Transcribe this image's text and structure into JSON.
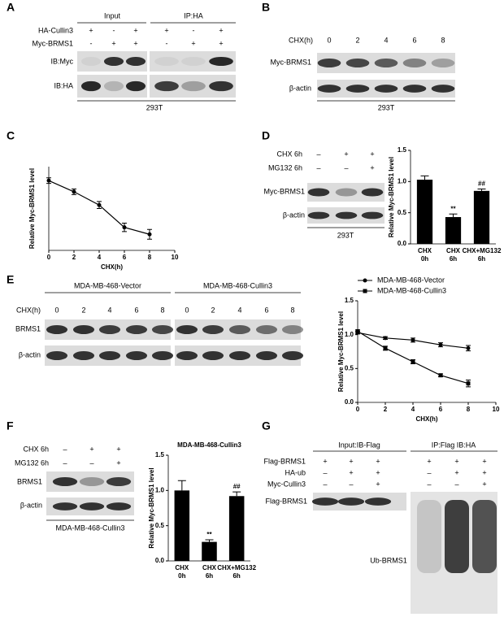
{
  "panels": {
    "A": {
      "label": "A",
      "groups": [
        "Input",
        "IP:HA"
      ],
      "conditions": [
        {
          "name": "HA-Cullin3",
          "signs": [
            "+",
            "-",
            "+",
            "+",
            "-",
            "+"
          ]
        },
        {
          "name": "Myc-BRMS1",
          "signs": [
            "-",
            "+",
            "+",
            "-",
            "+",
            "+"
          ]
        }
      ],
      "blots": [
        "IB:Myc",
        "IB:HA"
      ],
      "cell_line": "293T"
    },
    "B": {
      "label": "B",
      "time_label": "CHX(h)",
      "times": [
        0,
        2,
        4,
        6,
        8
      ],
      "blots": [
        "Myc-BRMS1",
        "β-actin"
      ],
      "cell_line": "293T"
    },
    "D": {
      "label": "D",
      "conditions": [
        {
          "name": "CHX 6h",
          "signs": [
            "–",
            "+",
            "+"
          ]
        },
        {
          "name": "MG132 6h",
          "signs": [
            "–",
            "–",
            "+"
          ]
        }
      ],
      "blots": [
        "Myc-BRMS1",
        "β-actin"
      ],
      "cell_line": "293T"
    },
    "E": {
      "label": "E",
      "time_label": "CHX(h)",
      "groups": [
        {
          "title": "MDA-MB-468-Vector",
          "times": [
            0,
            2,
            4,
            6,
            8
          ]
        },
        {
          "title": "MDA-MB-468-Cullin3",
          "times": [
            0,
            2,
            4,
            6,
            8
          ]
        }
      ],
      "blots": [
        "BRMS1",
        "β-actin"
      ]
    },
    "F": {
      "label": "F",
      "conditions": [
        {
          "name": "CHX 6h",
          "signs": [
            "–",
            "+",
            "+"
          ]
        },
        {
          "name": "MG132 6h",
          "signs": [
            "–",
            "–",
            "+"
          ]
        }
      ],
      "blots": [
        "BRMS1",
        "β-actin"
      ],
      "cell_line": "MDA-MB-468-Cullin3"
    },
    "G": {
      "label": "G",
      "groups": [
        "Input:IB-Flag",
        "IP:Flag IB:HA"
      ],
      "conditions": [
        {
          "name": "Flag-BRMS1",
          "signs": [
            "+",
            "+",
            "+",
            "+",
            "+",
            "+"
          ]
        },
        {
          "name": "HA-ub",
          "signs": [
            "–",
            "+",
            "+",
            "–",
            "+",
            "+"
          ]
        },
        {
          "name": "Myc-Cullin3",
          "signs": [
            "–",
            "–",
            "+",
            "–",
            "–",
            "+"
          ]
        }
      ],
      "blots": [
        "Flag-BRMS1",
        "Ub-BRMS1"
      ]
    }
  },
  "chart_data": [
    {
      "type": "line",
      "label": "C",
      "x": [
        0,
        2,
        4,
        6,
        8
      ],
      "values": [
        1.0,
        0.84,
        0.65,
        0.33,
        0.23
      ],
      "errors": [
        0.04,
        0.04,
        0.05,
        0.06,
        0.07
      ],
      "color": "#000000",
      "marker": "circle",
      "xlim": [
        0,
        10
      ],
      "xticks": [
        0,
        2,
        4,
        6,
        8,
        10
      ],
      "ylim": [
        0,
        1.2
      ],
      "xlabel": "CHX(h)",
      "ylabel": "Relative Myc-BRMS1 level"
    },
    {
      "type": "bar",
      "categories": [
        "CHX 0h",
        "CHX 6h",
        "CHX+MG132 6h"
      ],
      "values": [
        1.03,
        0.43,
        0.85
      ],
      "errors": [
        0.06,
        0.05,
        0.03
      ],
      "annotations": [
        null,
        "**",
        "##"
      ],
      "color": "#000000",
      "ylim": [
        0,
        1.5
      ],
      "yticks": [
        {
          "value": 0,
          "label": "0.0"
        },
        0.5,
        {
          "value": 1,
          "label": "1.0"
        },
        1.5
      ],
      "ylabel": "Relative Myc-BRMS1 level"
    },
    {
      "type": "line",
      "x": [
        0,
        2,
        4,
        6,
        8
      ],
      "series": [
        {
          "name": "MDA-MB-468-Vector",
          "color": "#000000",
          "marker": "circle",
          "values": [
            1.03,
            0.95,
            0.92,
            0.85,
            0.8
          ],
          "errors": [
            0.02,
            0.02,
            0.03,
            0.03,
            0.04
          ]
        },
        {
          "name": "MDA-MB-468-Cullin3",
          "color": "#000000",
          "marker": "square",
          "values": [
            1.05,
            0.8,
            0.6,
            0.4,
            0.28
          ],
          "errors": [
            0.02,
            0.03,
            0.03,
            0.02,
            0.05
          ]
        }
      ],
      "xlim": [
        0,
        10
      ],
      "xticks": [
        0,
        2,
        4,
        6,
        8,
        10
      ],
      "ylim": [
        0,
        1.5
      ],
      "yticks": [
        {
          "value": 0,
          "label": "0.0"
        },
        0.5,
        {
          "value": 1,
          "label": "1.0"
        },
        1.5
      ],
      "xlabel": "CHX(h)",
      "ylabel": "Relative Myc-BRMS1 level"
    },
    {
      "type": "bar",
      "title": "MDA-MB-468-Cullin3",
      "categories": [
        "CHX 0h",
        "CHX 6h",
        "CHX+MG132 6h"
      ],
      "values": [
        1.0,
        0.27,
        0.92
      ],
      "errors": [
        0.14,
        0.03,
        0.06
      ],
      "annotations": [
        null,
        "**",
        "##"
      ],
      "color": "#000000",
      "ylim": [
        0,
        1.5
      ],
      "yticks": [
        {
          "value": 0,
          "label": "0.0"
        },
        0.5,
        {
          "value": 1,
          "label": "1.0"
        },
        1.5
      ],
      "ylabel": "Relative Myc-BRMS1 level"
    }
  ]
}
